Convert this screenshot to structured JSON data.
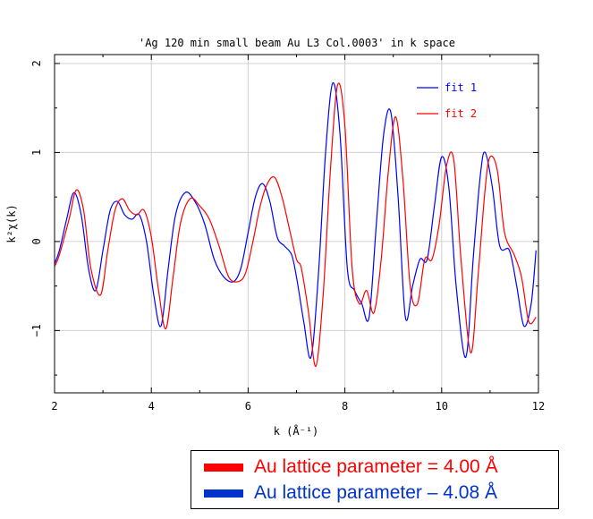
{
  "chart_data": {
    "type": "line",
    "title": "'Ag 120 min small beam Au L3 Col.0003' in k space",
    "xlabel": "k (Å⁻¹)",
    "ylabel": "k²χ(k)",
    "xlim": [
      2,
      12
    ],
    "ylim": [
      -1.7,
      2.1
    ],
    "xticks": [
      "2",
      "4",
      "6",
      "8",
      "10",
      "12"
    ],
    "yticks": [
      "2",
      "1",
      "0",
      "−1"
    ],
    "grid": true,
    "legend_position": "top-right",
    "series": [
      {
        "name": "fit 1",
        "color": "#0000ff",
        "x": [
          2.0,
          2.1,
          2.25,
          2.4,
          2.55,
          2.7,
          2.85,
          3.0,
          3.15,
          3.3,
          3.45,
          3.6,
          3.75,
          3.9,
          4.05,
          4.2,
          4.35,
          4.5,
          4.7,
          4.9,
          5.1,
          5.3,
          5.5,
          5.7,
          5.85,
          6.0,
          6.15,
          6.3,
          6.45,
          6.6,
          6.75,
          6.9,
          7.0,
          7.15,
          7.3,
          7.45,
          7.6,
          7.75,
          7.9,
          8.05,
          8.2,
          8.35,
          8.5,
          8.65,
          8.8,
          8.95,
          9.1,
          9.25,
          9.4,
          9.55,
          9.7,
          9.85,
          10.0,
          10.15,
          10.3,
          10.5,
          10.65,
          10.8,
          10.9,
          11.05,
          11.2,
          11.4,
          11.55,
          11.7,
          11.85,
          11.95
        ],
        "y": [
          -0.25,
          -0.1,
          0.25,
          0.55,
          0.3,
          -0.3,
          -0.55,
          -0.1,
          0.35,
          0.45,
          0.3,
          0.25,
          0.3,
          0.0,
          -0.6,
          -0.95,
          -0.3,
          0.3,
          0.55,
          0.45,
          0.2,
          -0.2,
          -0.4,
          -0.45,
          -0.3,
          0.1,
          0.5,
          0.65,
          0.45,
          0.05,
          -0.05,
          -0.15,
          -0.4,
          -0.9,
          -1.3,
          -0.4,
          1.0,
          1.78,
          1.2,
          -0.3,
          -0.55,
          -0.7,
          -0.85,
          0.2,
          1.2,
          1.45,
          0.5,
          -0.85,
          -0.5,
          -0.2,
          -0.2,
          0.4,
          0.95,
          0.6,
          -0.5,
          -1.3,
          -0.2,
          0.75,
          1.0,
          0.6,
          -0.05,
          -0.1,
          -0.5,
          -0.95,
          -0.7,
          -0.1
        ]
      },
      {
        "name": "fit 2",
        "color": "#ff0000",
        "x": [
          2.0,
          2.1,
          2.3,
          2.45,
          2.6,
          2.75,
          2.95,
          3.1,
          3.25,
          3.4,
          3.55,
          3.7,
          3.85,
          4.0,
          4.15,
          4.3,
          4.45,
          4.6,
          4.8,
          5.0,
          5.2,
          5.4,
          5.6,
          5.8,
          5.95,
          6.1,
          6.25,
          6.4,
          6.55,
          6.7,
          6.85,
          7.0,
          7.1,
          7.25,
          7.4,
          7.55,
          7.7,
          7.85,
          8.0,
          8.15,
          8.3,
          8.45,
          8.6,
          8.75,
          8.9,
          9.05,
          9.2,
          9.35,
          9.5,
          9.65,
          9.8,
          9.95,
          10.1,
          10.25,
          10.4,
          10.6,
          10.75,
          10.9,
          11.0,
          11.15,
          11.3,
          11.5,
          11.65,
          11.8,
          11.95
        ],
        "y": [
          -0.28,
          -0.15,
          0.25,
          0.58,
          0.35,
          -0.3,
          -0.6,
          -0.1,
          0.35,
          0.48,
          0.35,
          0.3,
          0.35,
          0.05,
          -0.55,
          -0.98,
          -0.4,
          0.2,
          0.48,
          0.4,
          0.25,
          -0.05,
          -0.4,
          -0.45,
          -0.35,
          0.0,
          0.4,
          0.65,
          0.72,
          0.5,
          0.15,
          -0.2,
          -0.3,
          -0.8,
          -1.4,
          -0.6,
          0.8,
          1.76,
          1.3,
          -0.3,
          -0.7,
          -0.55,
          -0.8,
          -0.2,
          0.8,
          1.4,
          0.7,
          -0.5,
          -0.7,
          -0.2,
          -0.2,
          0.2,
          0.85,
          0.92,
          -0.2,
          -1.25,
          -0.4,
          0.6,
          0.95,
          0.8,
          0.1,
          -0.15,
          -0.4,
          -0.9,
          -0.85
        ]
      }
    ]
  },
  "caption": {
    "rows": [
      {
        "text": "Au lattice parameter = 4.00 Å",
        "color": "#ff0000"
      },
      {
        "text": "Au lattice parameter – 4.08 Å",
        "color": "#0033cc"
      }
    ]
  }
}
